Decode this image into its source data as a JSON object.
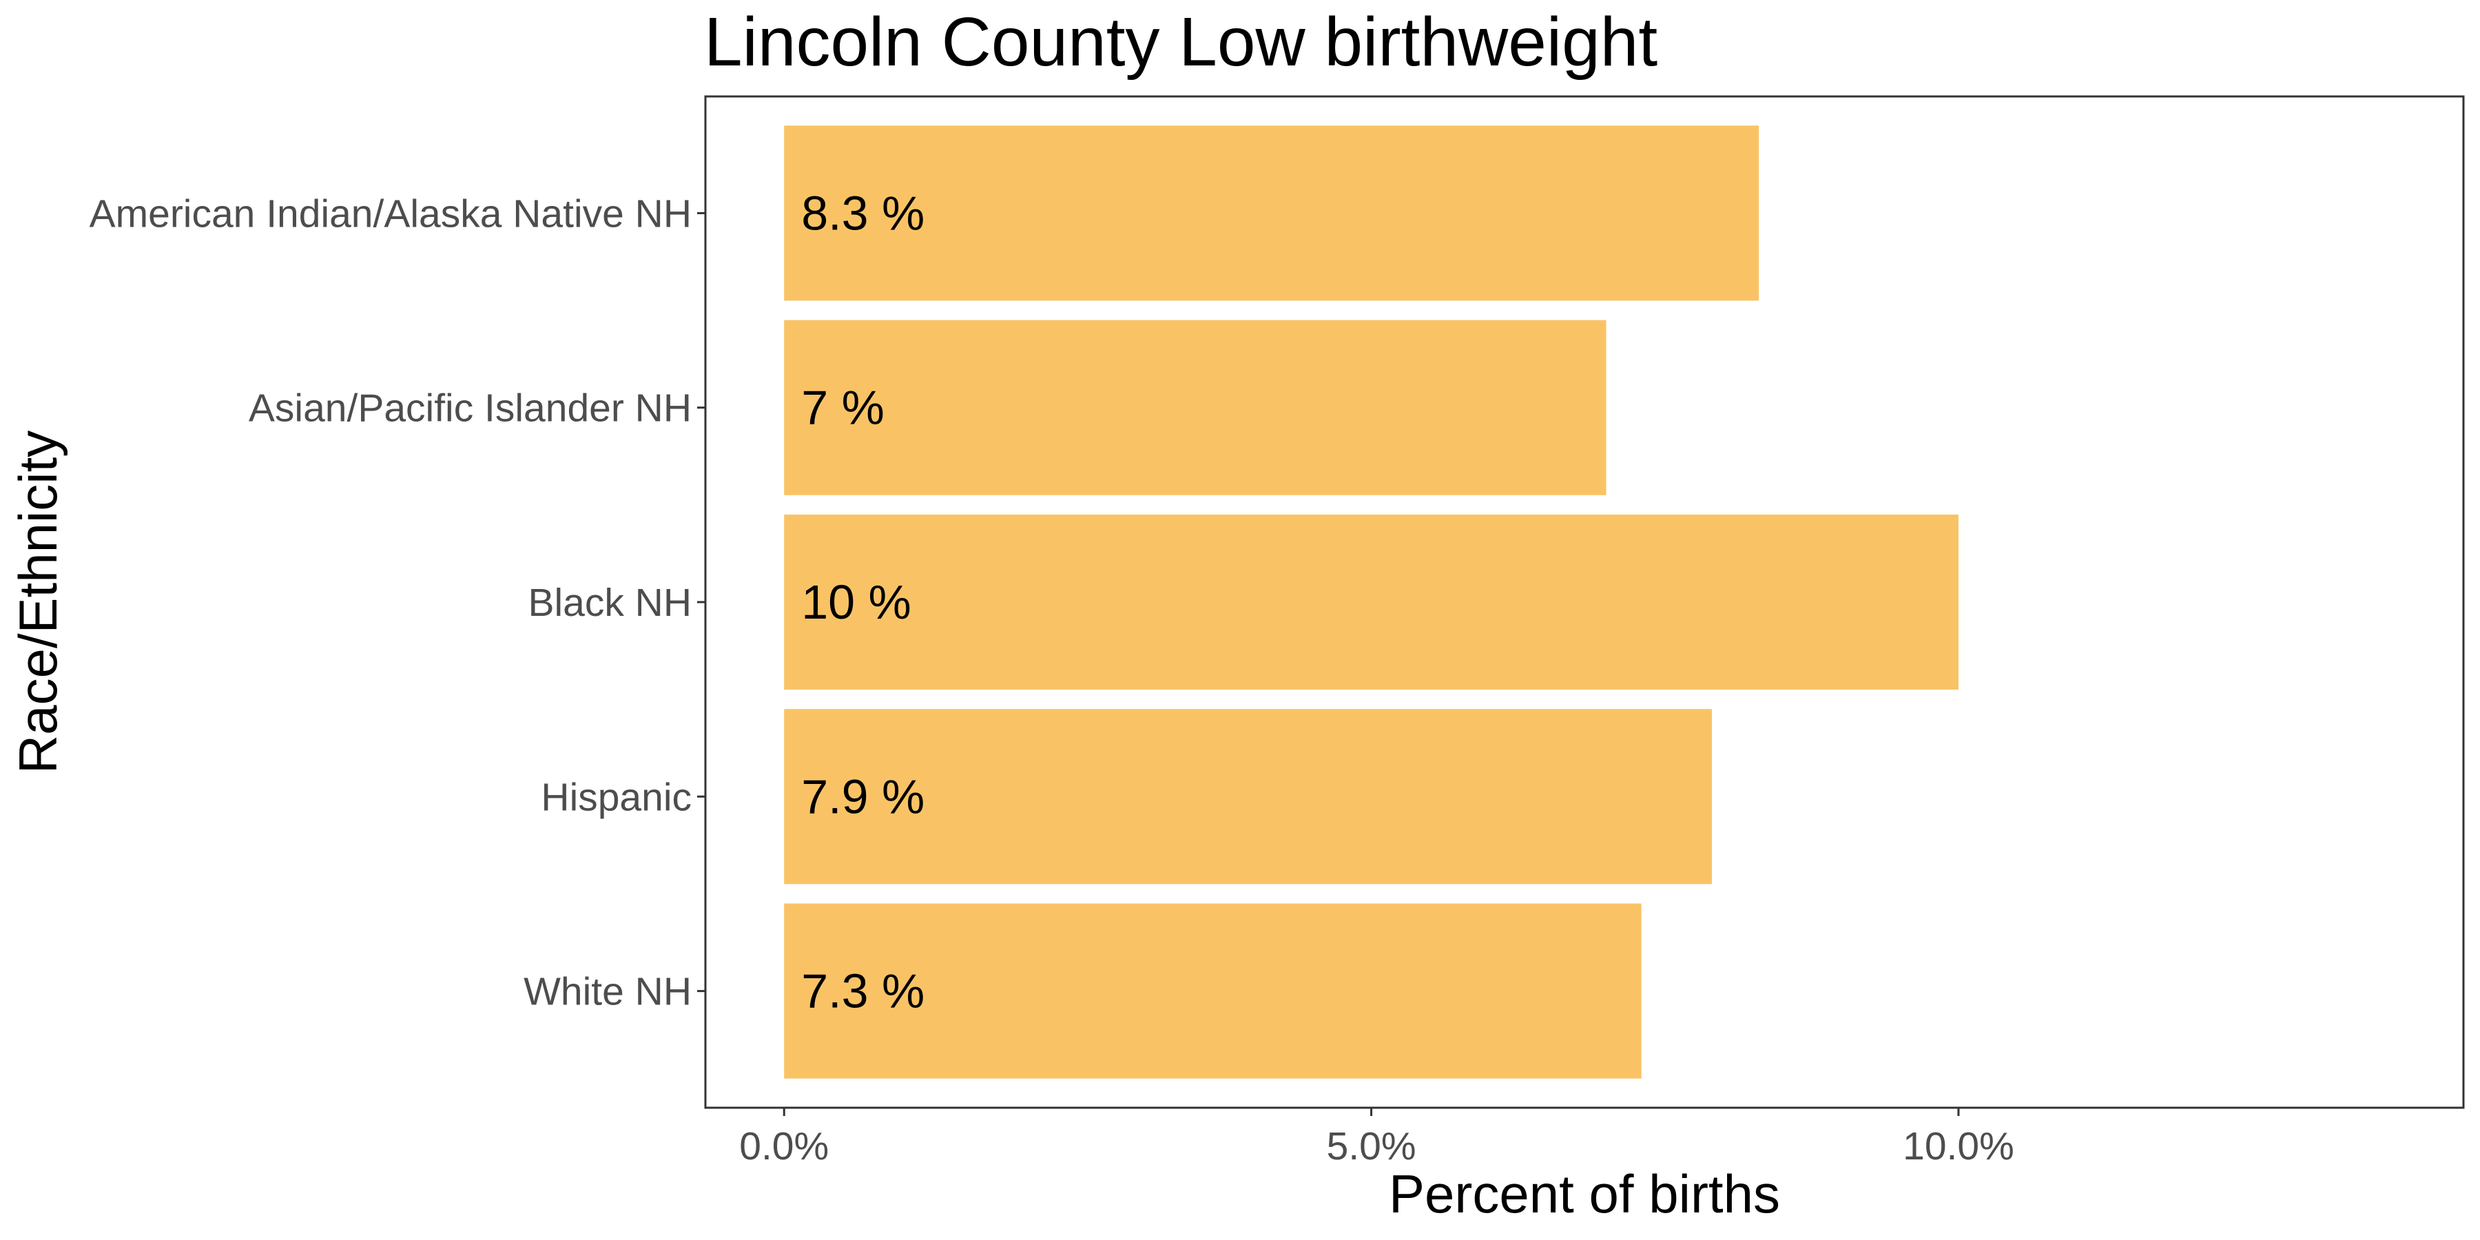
{
  "chart_data": {
    "type": "bar",
    "orientation": "horizontal",
    "title": "Lincoln County Low birthweight",
    "xlabel": "Percent of births",
    "ylabel": "Race/Ethnicity",
    "categories": [
      "American Indian/Alaska Native NH",
      "Asian/Pacific Islander NH",
      "Black NH",
      "Hispanic",
      "White NH"
    ],
    "values": [
      8.3,
      7.0,
      10.0,
      7.9,
      7.3
    ],
    "data_labels": [
      "8.3 %",
      "7 %",
      "10 %",
      "7.9 %",
      "7.3 %"
    ],
    "x_ticks": [
      0,
      5,
      10
    ],
    "x_tick_labels": [
      "0.0%",
      "5.0%",
      "10.0%"
    ],
    "xlim": [
      -0.67,
      14.3
    ],
    "grid": false,
    "legend": "none",
    "colors": {
      "bar": "#F9C365",
      "panel_border": "#333333"
    }
  }
}
